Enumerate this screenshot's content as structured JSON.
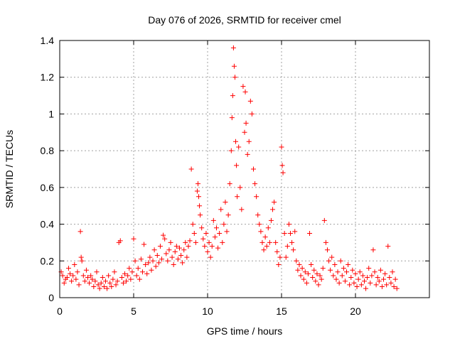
{
  "chart_data": {
    "type": "scatter",
    "title": "Day 076 of 2026, SRMTID for receiver cmel",
    "xlabel": "GPS time / hours",
    "ylabel": "SRMTID / TECUs",
    "xlim": [
      0,
      25
    ],
    "ylim": [
      0,
      1.4
    ],
    "xticks": [
      "0",
      "5",
      "10",
      "15",
      "20"
    ],
    "yticks": [
      "0",
      "0.2",
      "0.4",
      "0.6",
      "0.8",
      "1",
      "1.2",
      "1.4"
    ],
    "grid": true,
    "marker": "plus",
    "point_color": "#ff0000",
    "series": [
      {
        "name": "SRMTID",
        "points": [
          [
            0.1,
            0.14
          ],
          [
            0.2,
            0.12
          ],
          [
            0.3,
            0.08
          ],
          [
            0.4,
            0.1
          ],
          [
            0.5,
            0.11
          ],
          [
            0.6,
            0.16
          ],
          [
            0.7,
            0.13
          ],
          [
            0.8,
            0.09
          ],
          [
            0.9,
            0.12
          ],
          [
            1.0,
            0.18
          ],
          [
            1.1,
            0.1
          ],
          [
            1.2,
            0.14
          ],
          [
            1.3,
            0.07
          ],
          [
            1.4,
            0.36
          ],
          [
            1.45,
            0.22
          ],
          [
            1.5,
            0.2
          ],
          [
            1.6,
            0.12
          ],
          [
            1.7,
            0.09
          ],
          [
            1.8,
            0.15
          ],
          [
            1.9,
            0.11
          ],
          [
            2.0,
            0.08
          ],
          [
            2.1,
            0.12
          ],
          [
            2.2,
            0.1
          ],
          [
            2.3,
            0.06
          ],
          [
            2.4,
            0.09
          ],
          [
            2.5,
            0.14
          ],
          [
            2.6,
            0.07
          ],
          [
            2.7,
            0.05
          ],
          [
            2.8,
            0.08
          ],
          [
            2.9,
            0.11
          ],
          [
            3.0,
            0.06
          ],
          [
            3.1,
            0.09
          ],
          [
            3.2,
            0.05
          ],
          [
            3.3,
            0.12
          ],
          [
            3.4,
            0.08
          ],
          [
            3.5,
            0.06
          ],
          [
            3.6,
            0.1
          ],
          [
            3.7,
            0.14
          ],
          [
            3.8,
            0.07
          ],
          [
            3.9,
            0.09
          ],
          [
            4.0,
            0.3
          ],
          [
            4.1,
            0.31
          ],
          [
            4.2,
            0.11
          ],
          [
            4.3,
            0.08
          ],
          [
            4.4,
            0.13
          ],
          [
            4.5,
            0.09
          ],
          [
            4.6,
            0.12
          ],
          [
            4.7,
            0.16
          ],
          [
            4.8,
            0.1
          ],
          [
            4.9,
            0.14
          ],
          [
            5.0,
            0.32
          ],
          [
            5.1,
            0.2
          ],
          [
            5.2,
            0.12
          ],
          [
            5.3,
            0.16
          ],
          [
            5.4,
            0.1
          ],
          [
            5.5,
            0.21
          ],
          [
            5.6,
            0.14
          ],
          [
            5.7,
            0.29
          ],
          [
            5.8,
            0.18
          ],
          [
            5.9,
            0.13
          ],
          [
            6.0,
            0.19
          ],
          [
            6.1,
            0.22
          ],
          [
            6.2,
            0.15
          ],
          [
            6.3,
            0.2
          ],
          [
            6.4,
            0.26
          ],
          [
            6.5,
            0.17
          ],
          [
            6.6,
            0.23
          ],
          [
            6.7,
            0.19
          ],
          [
            6.8,
            0.28
          ],
          [
            6.9,
            0.21
          ],
          [
            7.0,
            0.34
          ],
          [
            7.1,
            0.32
          ],
          [
            7.2,
            0.24
          ],
          [
            7.3,
            0.2
          ],
          [
            7.4,
            0.26
          ],
          [
            7.5,
            0.3
          ],
          [
            7.6,
            0.22
          ],
          [
            7.7,
            0.18
          ],
          [
            7.8,
            0.25
          ],
          [
            7.9,
            0.28
          ],
          [
            8.0,
            0.21
          ],
          [
            8.1,
            0.27
          ],
          [
            8.2,
            0.23
          ],
          [
            8.3,
            0.19
          ],
          [
            8.4,
            0.26
          ],
          [
            8.5,
            0.3
          ],
          [
            8.6,
            0.22
          ],
          [
            8.7,
            0.28
          ],
          [
            8.8,
            0.31
          ],
          [
            8.9,
            0.7
          ],
          [
            9.0,
            0.4
          ],
          [
            9.1,
            0.35
          ],
          [
            9.2,
            0.3
          ],
          [
            9.3,
            0.58
          ],
          [
            9.35,
            0.62
          ],
          [
            9.4,
            0.55
          ],
          [
            9.45,
            0.5
          ],
          [
            9.5,
            0.45
          ],
          [
            9.6,
            0.38
          ],
          [
            9.7,
            0.32
          ],
          [
            9.8,
            0.28
          ],
          [
            9.9,
            0.35
          ],
          [
            10.0,
            0.25
          ],
          [
            10.1,
            0.3
          ],
          [
            10.2,
            0.22
          ],
          [
            10.3,
            0.28
          ],
          [
            10.4,
            0.42
          ],
          [
            10.5,
            0.33
          ],
          [
            10.6,
            0.38
          ],
          [
            10.7,
            0.27
          ],
          [
            10.8,
            0.35
          ],
          [
            10.9,
            0.48
          ],
          [
            11.0,
            0.3
          ],
          [
            11.1,
            0.4
          ],
          [
            11.2,
            0.52
          ],
          [
            11.3,
            0.36
          ],
          [
            11.4,
            0.45
          ],
          [
            11.5,
            0.62
          ],
          [
            11.6,
            0.8
          ],
          [
            11.65,
            0.98
          ],
          [
            11.7,
            1.1
          ],
          [
            11.75,
            1.36
          ],
          [
            11.8,
            1.26
          ],
          [
            11.85,
            1.2
          ],
          [
            11.9,
            0.85
          ],
          [
            11.95,
            0.72
          ],
          [
            12.0,
            0.55
          ],
          [
            12.1,
            0.82
          ],
          [
            12.2,
            0.6
          ],
          [
            12.3,
            0.48
          ],
          [
            12.4,
            1.15
          ],
          [
            12.5,
            0.9
          ],
          [
            12.55,
            1.12
          ],
          [
            12.6,
            0.95
          ],
          [
            12.7,
            0.78
          ],
          [
            12.8,
            0.85
          ],
          [
            12.9,
            1.07
          ],
          [
            13.0,
            1.0
          ],
          [
            13.1,
            0.7
          ],
          [
            13.2,
            0.62
          ],
          [
            13.3,
            0.55
          ],
          [
            13.4,
            0.45
          ],
          [
            13.5,
            0.4
          ],
          [
            13.6,
            0.36
          ],
          [
            13.7,
            0.3
          ],
          [
            13.8,
            0.26
          ],
          [
            13.9,
            0.33
          ],
          [
            14.0,
            0.28
          ],
          [
            14.1,
            0.38
          ],
          [
            14.2,
            0.3
          ],
          [
            14.3,
            0.42
          ],
          [
            14.4,
            0.48
          ],
          [
            14.5,
            0.52
          ],
          [
            14.6,
            0.3
          ],
          [
            14.7,
            0.25
          ],
          [
            14.8,
            0.18
          ],
          [
            14.9,
            0.22
          ],
          [
            15.0,
            0.82
          ],
          [
            15.05,
            0.72
          ],
          [
            15.1,
            0.68
          ],
          [
            15.2,
            0.35
          ],
          [
            15.3,
            0.22
          ],
          [
            15.4,
            0.28
          ],
          [
            15.5,
            0.4
          ],
          [
            15.6,
            0.35
          ],
          [
            15.7,
            0.3
          ],
          [
            15.8,
            0.26
          ],
          [
            15.9,
            0.36
          ],
          [
            16.0,
            0.2
          ],
          [
            16.1,
            0.15
          ],
          [
            16.2,
            0.18
          ],
          [
            16.3,
            0.12
          ],
          [
            16.4,
            0.16
          ],
          [
            16.5,
            0.1
          ],
          [
            16.6,
            0.14
          ],
          [
            16.7,
            0.08
          ],
          [
            16.8,
            0.13
          ],
          [
            16.9,
            0.35
          ],
          [
            17.0,
            0.18
          ],
          [
            17.1,
            0.11
          ],
          [
            17.2,
            0.15
          ],
          [
            17.3,
            0.09
          ],
          [
            17.4,
            0.13
          ],
          [
            17.5,
            0.07
          ],
          [
            17.6,
            0.12
          ],
          [
            17.7,
            0.1
          ],
          [
            17.8,
            0.16
          ],
          [
            17.9,
            0.42
          ],
          [
            18.0,
            0.3
          ],
          [
            18.1,
            0.26
          ],
          [
            18.2,
            0.2
          ],
          [
            18.3,
            0.15
          ],
          [
            18.4,
            0.22
          ],
          [
            18.5,
            0.12
          ],
          [
            18.6,
            0.18
          ],
          [
            18.7,
            0.1
          ],
          [
            18.8,
            0.14
          ],
          [
            18.9,
            0.08
          ],
          [
            19.0,
            0.2
          ],
          [
            19.1,
            0.12
          ],
          [
            19.2,
            0.16
          ],
          [
            19.3,
            0.09
          ],
          [
            19.4,
            0.14
          ],
          [
            19.5,
            0.18
          ],
          [
            19.6,
            0.07
          ],
          [
            19.7,
            0.11
          ],
          [
            19.8,
            0.15
          ],
          [
            19.9,
            0.08
          ],
          [
            20.0,
            0.13
          ],
          [
            20.1,
            0.06
          ],
          [
            20.2,
            0.1
          ],
          [
            20.3,
            0.14
          ],
          [
            20.4,
            0.07
          ],
          [
            20.5,
            0.12
          ],
          [
            20.6,
            0.09
          ],
          [
            20.7,
            0.05
          ],
          [
            20.8,
            0.11
          ],
          [
            20.9,
            0.16
          ],
          [
            21.0,
            0.08
          ],
          [
            21.1,
            0.12
          ],
          [
            21.2,
            0.26
          ],
          [
            21.3,
            0.14
          ],
          [
            21.4,
            0.07
          ],
          [
            21.5,
            0.11
          ],
          [
            21.6,
            0.09
          ],
          [
            21.7,
            0.15
          ],
          [
            21.8,
            0.06
          ],
          [
            21.9,
            0.1
          ],
          [
            22.0,
            0.13
          ],
          [
            22.1,
            0.07
          ],
          [
            22.2,
            0.28
          ],
          [
            22.3,
            0.11
          ],
          [
            22.4,
            0.08
          ],
          [
            22.5,
            0.14
          ],
          [
            22.6,
            0.06
          ],
          [
            22.7,
            0.1
          ],
          [
            22.8,
            0.05
          ]
        ]
      }
    ]
  }
}
